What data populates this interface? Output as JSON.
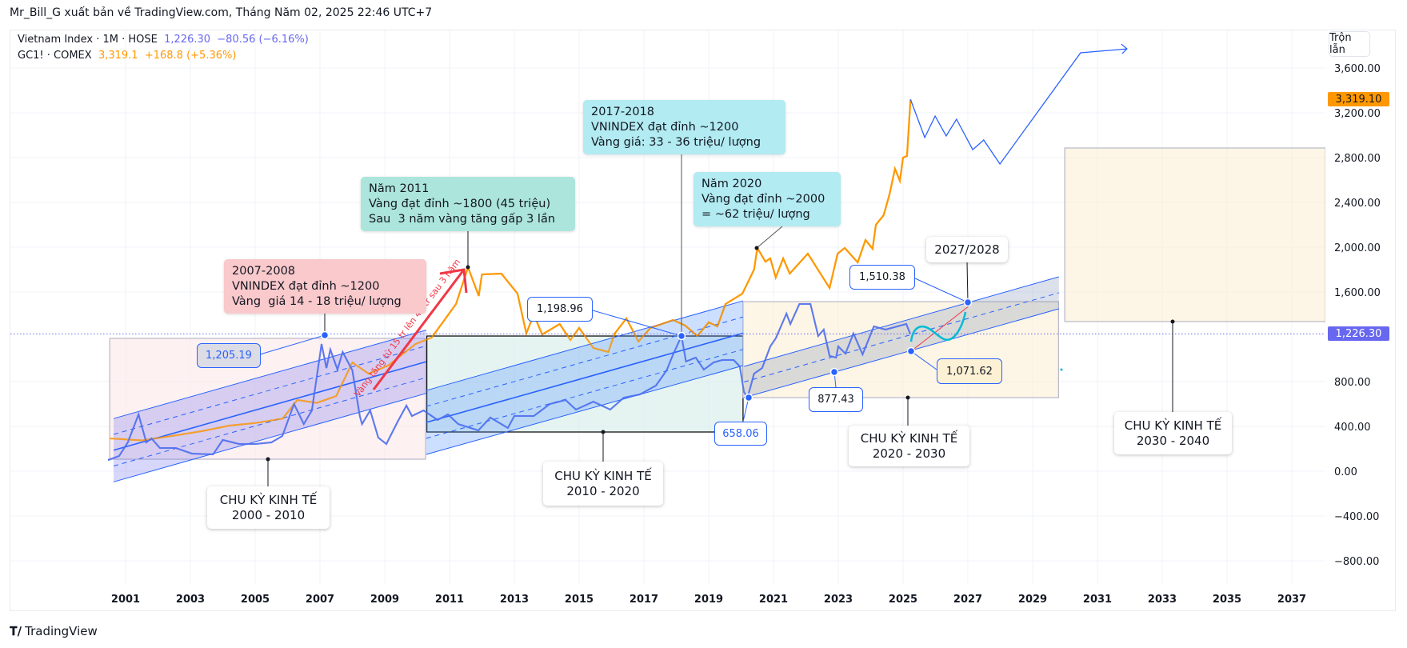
{
  "header": {
    "published_by": "Mr_Bill_G xuất bản về TradingView.com, Tháng Năm 02, 2025 22:46 UTC+7"
  },
  "legend": {
    "vnindex": {
      "name": "Vietnam Index · 1M · HOSE",
      "price": "1,226.30",
      "change": "−80.56 (−6.16%)",
      "color": "#6767f0"
    },
    "gold": {
      "name": "GC1! · COMEX",
      "price": "3,319.1",
      "change": "+168.8 (+5.36%)",
      "color": "#ff9800"
    }
  },
  "toolbar": {
    "mix_label": "Trộn lẫn"
  },
  "price_tags": {
    "gold": "3,319.10",
    "vnindex": "1,226.30"
  },
  "branding": {
    "logo": "TradingView"
  },
  "chart_data": {
    "type": "line",
    "xlabel": "",
    "ylabel": "",
    "xlim": [
      2000,
      2038
    ],
    "ylim": [
      -1000,
      3700
    ],
    "grid": true,
    "x_ticks": [
      "2001",
      "2003",
      "2005",
      "2007",
      "2009",
      "2011",
      "2013",
      "2015",
      "2017",
      "2019",
      "2021",
      "2023",
      "2025",
      "2027",
      "2029",
      "2031",
      "2033",
      "2035",
      "2037"
    ],
    "y_ticks": [
      "3,600.00",
      "3,200.00",
      "2,800.00",
      "2,400.00",
      "2,000.00",
      "1,600.00",
      "800.00",
      "400.00",
      "0.00",
      "−400.00",
      "−800.00"
    ],
    "series": [
      {
        "name": "Vietnam Index · 1M · HOSE",
        "color": "#4d6ff0",
        "points": [
          [
            2000.46,
            100
          ],
          [
            2000.8,
            136
          ],
          [
            2001.07,
            257
          ],
          [
            2001.4,
            507
          ],
          [
            2001.64,
            257
          ],
          [
            2001.8,
            293
          ],
          [
            2002.06,
            207
          ],
          [
            2002.55,
            207
          ],
          [
            2003.05,
            157
          ],
          [
            2003.7,
            150
          ],
          [
            2004.0,
            279
          ],
          [
            2004.5,
            243
          ],
          [
            2005.0,
            243
          ],
          [
            2005.5,
            257
          ],
          [
            2005.84,
            314
          ],
          [
            2006.2,
            600
          ],
          [
            2006.5,
            421
          ],
          [
            2006.75,
            543
          ],
          [
            2007.05,
            1136
          ],
          [
            2007.2,
            921
          ],
          [
            2007.32,
            1086
          ],
          [
            2007.54,
            907
          ],
          [
            2007.7,
            1064
          ],
          [
            2008.0,
            900
          ],
          [
            2008.23,
            493
          ],
          [
            2008.3,
            421
          ],
          [
            2008.55,
            543
          ],
          [
            2008.8,
            300
          ],
          [
            2009.05,
            243
          ],
          [
            2009.4,
            443
          ],
          [
            2009.67,
            586
          ],
          [
            2009.84,
            493
          ],
          [
            2010.2,
            543
          ],
          [
            2010.63,
            457
          ],
          [
            2010.95,
            507
          ],
          [
            2011.27,
            421
          ],
          [
            2011.89,
            364
          ],
          [
            2012.26,
            479
          ],
          [
            2012.8,
            386
          ],
          [
            2013.0,
            493
          ],
          [
            2013.6,
            493
          ],
          [
            2014.1,
            600
          ],
          [
            2014.58,
            636
          ],
          [
            2014.9,
            550
          ],
          [
            2015.44,
            621
          ],
          [
            2015.96,
            550
          ],
          [
            2016.38,
            657
          ],
          [
            2016.88,
            686
          ],
          [
            2017.37,
            764
          ],
          [
            2017.7,
            900
          ],
          [
            2017.9,
            1043
          ],
          [
            2018.16,
            1207
          ],
          [
            2018.3,
            979
          ],
          [
            2018.6,
            1014
          ],
          [
            2018.85,
            907
          ],
          [
            2019.15,
            971
          ],
          [
            2019.42,
            993
          ],
          [
            2019.77,
            993
          ],
          [
            2019.96,
            936
          ],
          [
            2020.09,
            707
          ],
          [
            2020.2,
            657
          ],
          [
            2020.4,
            871
          ],
          [
            2020.65,
            921
          ],
          [
            2020.9,
            1114
          ],
          [
            2021.07,
            1186
          ],
          [
            2021.4,
            1407
          ],
          [
            2021.52,
            1314
          ],
          [
            2021.8,
            1493
          ],
          [
            2022.14,
            1493
          ],
          [
            2022.38,
            1207
          ],
          [
            2022.55,
            1264
          ],
          [
            2022.73,
            1029
          ],
          [
            2022.93,
            1014
          ],
          [
            2023.0,
            1114
          ],
          [
            2023.22,
            1050
          ],
          [
            2023.47,
            1229
          ],
          [
            2023.75,
            1043
          ],
          [
            2024.1,
            1293
          ],
          [
            2024.46,
            1264
          ],
          [
            2025.1,
            1314
          ],
          [
            2025.22,
            1226.3
          ]
        ]
      },
      {
        "name": "GC1! · COMEX",
        "color": "#ff9800",
        "points": [
          [
            2000.5,
            293
          ],
          [
            2001.5,
            275
          ],
          [
            2002.55,
            320
          ],
          [
            2003.4,
            360
          ],
          [
            2004.2,
            407
          ],
          [
            2005.0,
            430
          ],
          [
            2005.85,
            470
          ],
          [
            2006.3,
            636
          ],
          [
            2006.9,
            610
          ],
          [
            2007.5,
            671
          ],
          [
            2008.0,
            971
          ],
          [
            2008.5,
            871
          ],
          [
            2009.1,
            943
          ],
          [
            2009.95,
            1136
          ],
          [
            2010.45,
            1193
          ],
          [
            2011.2,
            1493
          ],
          [
            2011.57,
            1821
          ],
          [
            2011.9,
            1564
          ],
          [
            2012.0,
            1757
          ],
          [
            2012.6,
            1764
          ],
          [
            2013.1,
            1586
          ],
          [
            2013.37,
            1229
          ],
          [
            2013.6,
            1400
          ],
          [
            2013.86,
            1221
          ],
          [
            2014.4,
            1314
          ],
          [
            2014.73,
            1171
          ],
          [
            2015.0,
            1279
          ],
          [
            2015.44,
            1100
          ],
          [
            2015.9,
            1064
          ],
          [
            2016.1,
            1229
          ],
          [
            2016.46,
            1364
          ],
          [
            2016.83,
            1157
          ],
          [
            2017.2,
            1279
          ],
          [
            2017.9,
            1350
          ],
          [
            2018.28,
            1300
          ],
          [
            2018.65,
            1207
          ],
          [
            2019.0,
            1329
          ],
          [
            2019.27,
            1293
          ],
          [
            2019.52,
            1493
          ],
          [
            2020.04,
            1586
          ],
          [
            2020.4,
            1800
          ],
          [
            2020.5,
            1993
          ],
          [
            2020.75,
            1871
          ],
          [
            2020.9,
            1900
          ],
          [
            2021.07,
            1729
          ],
          [
            2021.3,
            1900
          ],
          [
            2021.5,
            1764
          ],
          [
            2022.06,
            1943
          ],
          [
            2022.73,
            1636
          ],
          [
            2022.98,
            1943
          ],
          [
            2023.2,
            1993
          ],
          [
            2023.6,
            1864
          ],
          [
            2023.84,
            2064
          ],
          [
            2024.06,
            1986
          ],
          [
            2024.16,
            2200
          ],
          [
            2024.4,
            2286
          ],
          [
            2024.58,
            2471
          ],
          [
            2024.75,
            2700
          ],
          [
            2024.9,
            2593
          ],
          [
            2025.0,
            2800
          ],
          [
            2025.12,
            2814
          ],
          [
            2025.23,
            3319.1
          ]
        ]
      }
    ],
    "projection": {
      "color": "#2962ff",
      "points": [
        [
          2025.23,
          3319.1
        ],
        [
          2025.67,
          2979
        ],
        [
          2025.99,
          3171
        ],
        [
          2026.33,
          2993
        ],
        [
          2026.65,
          3143
        ],
        [
          2027.15,
          2871
        ],
        [
          2027.49,
          2957
        ],
        [
          2027.99,
          2743
        ],
        [
          2030.48,
          3736
        ],
        [
          2031.91,
          3771
        ]
      ]
    },
    "current_price_line": 1226.3,
    "rectangles": [
      {
        "name": "cycle-2000-2010",
        "x": [
          2000.51,
          2010.26
        ],
        "y": [
          107,
          1186
        ],
        "fill": "#fde7e7",
        "stroke": "#b8b8c8"
      },
      {
        "name": "cycle-2010-2020",
        "x": [
          2010.3,
          2020.06
        ],
        "y": [
          350,
          1207
        ],
        "fill": "#d3ece8",
        "stroke": "#000000"
      },
      {
        "name": "cycle-2020-2030",
        "x": [
          2020.06,
          2029.8
        ],
        "y": [
          657,
          1514
        ],
        "fill": "#fcefd4",
        "stroke": "#b8b8c8"
      },
      {
        "name": "cycle-2030-2040",
        "x": [
          2029.99,
          2038.04
        ],
        "y": [
          1336,
          2886
        ],
        "fill": "#fcefd4",
        "stroke": "#b8b8c8"
      }
    ],
    "channels": [
      {
        "x": [
          2000.63,
          2010.28
        ],
        "upper": [
          470,
          1260
        ],
        "lower": [
          -95,
          695
        ],
        "fill": "#6e6ef0"
      },
      {
        "x": [
          2010.28,
          2020.06
        ],
        "upper": [
          721,
          1521
        ],
        "lower": [
          150,
          943
        ],
        "fill": "#4a8cff"
      },
      {
        "x": [
          2020.09,
          2029.81
        ],
        "upper": [
          936,
          1736
        ],
        "lower": [
          657,
          1450
        ],
        "fill": "#7e90b8"
      }
    ],
    "annotations": {
      "callout_2007": "2007-2008\nVNINDEX đạt đỉnh ~1200\nVàng  giá 14 - 18 triệu/ lượng",
      "callout_2011": "Năm 2011\nVàng đạt đỉnh ~1800 (45 triệu)\nSau  3 năm vàng tăng gấp 3 lần",
      "callout_2017": "2017-2018\nVNINDEX đạt đỉnh ~1200\nVàng giá: 33 - 36 triệu/ lượng",
      "callout_2020": "Năm 2020\nVàng đạt đỉnh ~2000\n= ~62 triệu/ lượng",
      "arrow_text": "Vàng tăng từ 15 tr lên 45 tr sau 3 năm",
      "labels": {
        "p1205": "1,205.19",
        "p1198": "1,198.96",
        "p658": "658.06",
        "p1510": "1,510.38",
        "p877": "877.43",
        "p1071": "1,071.62",
        "y2027": "2027/2028"
      },
      "cycles": [
        {
          "title": "CHU KỲ KINH TẾ",
          "range": "2000 - 2010"
        },
        {
          "title": "CHU KỲ KINH TẾ",
          "range": "2010 - 2020"
        },
        {
          "title": "CHU KỲ KINH TẾ",
          "range": "2020 - 2030"
        },
        {
          "title": "CHU KỲ KINH TẾ",
          "range": "2030 - 2040"
        }
      ]
    }
  }
}
